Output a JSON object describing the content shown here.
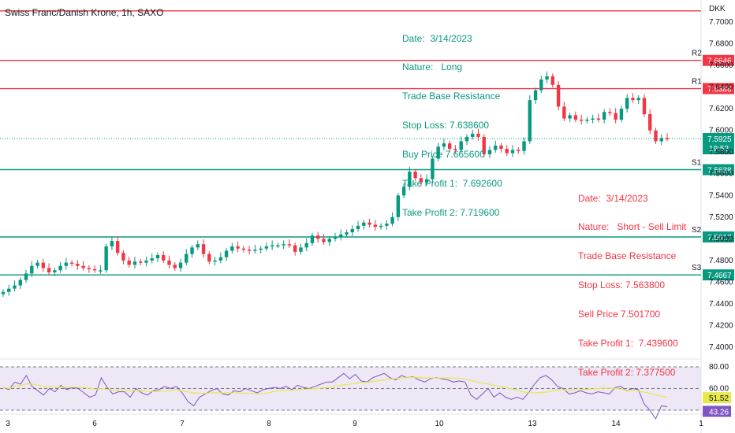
{
  "chart_data": {
    "type": "candlestick",
    "title": "Swiss Franc/Danish Krone, 1h, SAXO",
    "currency": "DKK",
    "y_ticks": [
      7.7,
      7.68,
      7.66,
      7.64,
      7.62,
      7.6,
      7.58,
      7.56,
      7.54,
      7.52,
      7.5,
      7.48,
      7.46,
      7.44,
      7.42,
      7.4
    ],
    "x_ticks": [
      "3",
      "6",
      "7",
      "8",
      "9",
      "10",
      "13",
      "14",
      "1"
    ],
    "ylim": [
      7.385,
      7.715
    ],
    "last_price": {
      "value": "7.5925",
      "countdown": "19:52",
      "color": "#089981"
    },
    "levels": [
      {
        "name": "",
        "value": 7.7103,
        "color": "#f23645",
        "label": ""
      },
      {
        "name": "R2",
        "value": 7.6646,
        "color": "#f23645",
        "label": "7.6646"
      },
      {
        "name": "R1",
        "value": 7.6386,
        "color": "#f23645",
        "label": "7.6386"
      },
      {
        "name": "S1",
        "value": 7.5638,
        "color": "#089981",
        "label": "7.5638"
      },
      {
        "name": "S2",
        "value": 7.5017,
        "color": "#089981",
        "label": "7.5017"
      },
      {
        "name": "S3",
        "value": 7.4667,
        "color": "#089981",
        "label": "7.4667"
      }
    ],
    "price_path": [
      7.451,
      7.454,
      7.457,
      7.462,
      7.468,
      7.475,
      7.478,
      7.473,
      7.469,
      7.471,
      7.475,
      7.478,
      7.477,
      7.475,
      7.473,
      7.472,
      7.471,
      7.471,
      7.493,
      7.498,
      7.487,
      7.48,
      7.476,
      7.479,
      7.478,
      7.48,
      7.482,
      7.485,
      7.48,
      7.476,
      7.473,
      7.478,
      7.486,
      7.492,
      7.495,
      7.486,
      7.479,
      7.48,
      7.483,
      7.489,
      7.493,
      7.491,
      7.49,
      7.489,
      7.49,
      7.491,
      7.493,
      7.494,
      7.494,
      7.495,
      7.494,
      7.488,
      7.492,
      7.496,
      7.503,
      7.5,
      7.497,
      7.5,
      7.502,
      7.504,
      7.506,
      7.509,
      7.512,
      7.515,
      7.513,
      7.511,
      7.512,
      7.514,
      7.52,
      7.54,
      7.548,
      7.562,
      7.556,
      7.552,
      7.555,
      7.574,
      7.585,
      7.588,
      7.583,
      7.582,
      7.59,
      7.594,
      7.597,
      7.594,
      7.578,
      7.582,
      7.586,
      7.583,
      7.579,
      7.582,
      7.581,
      7.59,
      7.628,
      7.637,
      7.647,
      7.65,
      7.642,
      7.622,
      7.611,
      7.614,
      7.61,
      7.609,
      7.61,
      7.611,
      7.61,
      7.617,
      7.616,
      7.61,
      7.62,
      7.63,
      7.628,
      7.63,
      7.615,
      7.6,
      7.59,
      7.593,
      7.5925
    ],
    "rsi": {
      "levels": [
        80,
        60,
        40
      ],
      "value": "43.26",
      "ma_value": "51.52",
      "line_color": "#7e57c2",
      "ma_color": "#e8e84a",
      "values": [
        61,
        59,
        66,
        64,
        72,
        62,
        58,
        54,
        60,
        57,
        63,
        59,
        61,
        60,
        56,
        52,
        54,
        70,
        61,
        55,
        57,
        57,
        52,
        60,
        56,
        54,
        58,
        59,
        62,
        60,
        62,
        56,
        48,
        44,
        52,
        55,
        58,
        60,
        55,
        54,
        58,
        57,
        60,
        58,
        56,
        59,
        60,
        61,
        60,
        62,
        59,
        63,
        61,
        60,
        62,
        64,
        66,
        66,
        70,
        74,
        69,
        73,
        67,
        66,
        70,
        72,
        74,
        70,
        68,
        72,
        70,
        71,
        68,
        66,
        69,
        70,
        69,
        68,
        66,
        67,
        66,
        54,
        50,
        55,
        60,
        52,
        56,
        52,
        50,
        52,
        50,
        56,
        64,
        70,
        72,
        68,
        62,
        60,
        55,
        56,
        58,
        56,
        55,
        57,
        56,
        55,
        61,
        62,
        58,
        60,
        59,
        46,
        40,
        32,
        44,
        43.26
      ]
    },
    "annotations": [
      {
        "name": "long-trade",
        "lines": [
          "Date:  3/14/2023",
          "Nature:   Long",
          "Trade Base Resistance",
          "Stop Loss: 7.638600",
          "Buy Price 7.665600",
          "Take Profit 1:  7.692600",
          "Take Profit 2: 7.719600"
        ],
        "color": "#089981"
      },
      {
        "name": "short-trade",
        "lines": [
          "Date:  3/14/2023",
          "Nature:   Short - Sell Limit",
          "Trade Base Resistance",
          "Stop Loss: 7.563800",
          "Sell Price 7.501700",
          "Take Profit 1:  7.439600",
          "Take Profit 2: 7.377500"
        ],
        "color": "#f23645"
      }
    ],
    "up_color": "#089981",
    "down_color": "#f23645"
  }
}
